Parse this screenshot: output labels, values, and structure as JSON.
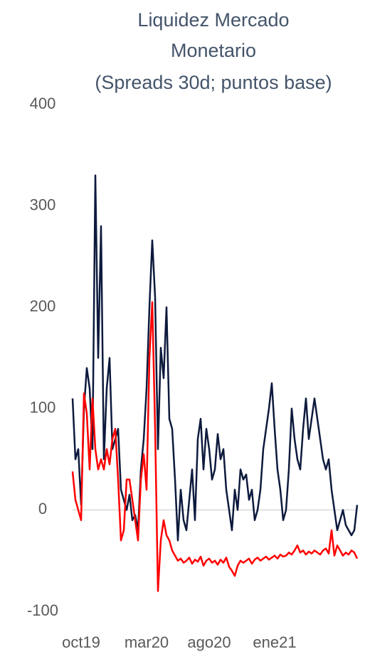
{
  "chart_data": {
    "type": "line",
    "title": [
      "Liquidez Mercado",
      "Monetario",
      "(Spreads 30d; puntos base)"
    ],
    "categories": [
      null,
      null,
      null,
      "oct19",
      null,
      null,
      null,
      null,
      null,
      null,
      null,
      null,
      null,
      null,
      null,
      null,
      null,
      null,
      null,
      null,
      null,
      null,
      null,
      null,
      null,
      null,
      "mar20",
      null,
      null,
      null,
      null,
      null,
      null,
      null,
      null,
      null,
      null,
      null,
      null,
      null,
      null,
      null,
      null,
      null,
      null,
      null,
      null,
      null,
      "ago20",
      null,
      null,
      null,
      null,
      null,
      null,
      null,
      null,
      null,
      null,
      null,
      null,
      null,
      null,
      null,
      null,
      null,
      null,
      null,
      null,
      null,
      null,
      "ene21",
      null,
      null,
      null,
      null,
      null,
      null,
      null,
      null,
      null,
      null,
      null,
      null,
      null,
      null,
      null,
      null,
      null,
      null,
      null,
      null,
      null,
      null,
      null,
      null,
      null,
      null,
      null,
      null,
      null
    ],
    "series": [
      {
        "color": "#0d1a3d",
        "values": [
          110,
          50,
          60,
          5,
          100,
          140,
          120,
          60,
          330,
          150,
          280,
          50,
          120,
          150,
          60,
          70,
          80,
          20,
          10,
          0,
          15,
          -10,
          -5,
          -20,
          40,
          70,
          120,
          200,
          266,
          210,
          60,
          160,
          130,
          200,
          90,
          80,
          30,
          -30,
          20,
          -10,
          -20,
          10,
          40,
          -10,
          70,
          90,
          40,
          80,
          60,
          30,
          40,
          75,
          50,
          60,
          20,
          0,
          -20,
          20,
          0,
          40,
          30,
          35,
          10,
          20,
          -10,
          0,
          20,
          60,
          80,
          100,
          125,
          80,
          40,
          20,
          -10,
          0,
          40,
          100,
          70,
          50,
          40,
          80,
          110,
          70,
          90,
          110,
          90,
          70,
          50,
          40,
          50,
          20,
          0,
          -20,
          -10,
          0,
          -15,
          -20,
          -25,
          -20,
          5
        ]
      },
      {
        "color": "#ff0000",
        "values": [
          38,
          10,
          0,
          -10,
          115,
          95,
          40,
          110,
          60,
          40,
          50,
          40,
          60,
          45,
          70,
          80,
          30,
          -30,
          -20,
          30,
          30,
          10,
          -10,
          -30,
          30,
          55,
          20,
          150,
          205,
          80,
          -80,
          -30,
          -10,
          -25,
          -30,
          -40,
          -45,
          -50,
          -48,
          -52,
          -50,
          -47,
          -53,
          -49,
          -51,
          -46,
          -55,
          -50,
          -48,
          -52,
          -50,
          -54,
          -49,
          -52,
          -47,
          -56,
          -60,
          -65,
          -55,
          -50,
          -52,
          -50,
          -48,
          -53,
          -49,
          -47,
          -50,
          -48,
          -46,
          -49,
          -47,
          -45,
          -48,
          -44,
          -46,
          -45,
          -42,
          -44,
          -40,
          -35,
          -42,
          -40,
          -44,
          -41,
          -43,
          -40,
          -42,
          -44,
          -40,
          -38,
          -43,
          -20,
          -45,
          -35,
          -40,
          -45,
          -42,
          -44,
          -40,
          -42,
          -48
        ]
      }
    ],
    "ylim": [
      -100,
      400
    ],
    "yticks": [
      -100,
      0,
      100,
      200,
      300,
      400
    ]
  }
}
